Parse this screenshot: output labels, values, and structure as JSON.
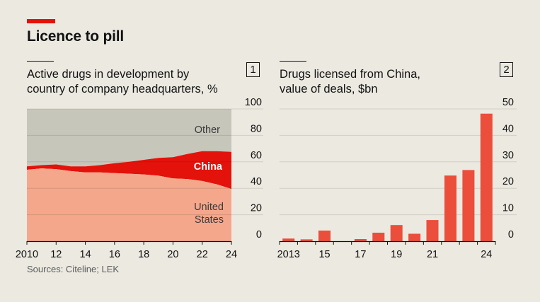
{
  "header": {
    "title": "Licence to pill"
  },
  "footer": {
    "source": "Sources: Citeline; LEK"
  },
  "colors": {
    "accent": "#e3120b",
    "background": "#ebe9e0",
    "area_other": "#c7c6bb",
    "area_china": "#e3120b",
    "area_us": "#f5a78c",
    "bars": "#eb4e3b"
  },
  "chart_data": [
    {
      "id": "1",
      "type": "area",
      "title": "Active drugs in development by country of company headquarters, %",
      "title_lines": [
        "Active drugs in development by",
        "country of company headquarters, %"
      ],
      "panel_number": "1",
      "ylim": [
        0,
        100
      ],
      "yticks": [
        0,
        20,
        40,
        60,
        80,
        100
      ],
      "xticks": [
        2010,
        2012,
        2014,
        2016,
        2018,
        2020,
        2022,
        2024
      ],
      "xtick_labels": [
        "2010",
        "12",
        "14",
        "16",
        "18",
        "20",
        "22",
        "24"
      ],
      "x": [
        2010,
        2011,
        2012,
        2013,
        2014,
        2015,
        2016,
        2017,
        2018,
        2019,
        2020,
        2021,
        2022,
        2023,
        2024
      ],
      "series": [
        {
          "name": "United States",
          "label_lines": [
            "United",
            "States"
          ],
          "values": [
            54,
            55,
            54.5,
            53,
            52,
            52,
            51.5,
            51,
            50.5,
            49.5,
            47.5,
            47,
            45.5,
            43,
            39.5
          ]
        },
        {
          "name": "China",
          "label_lines": [
            "China"
          ],
          "values": [
            2.5,
            2.5,
            3.5,
            3.5,
            4.5,
            5.5,
            7.5,
            9,
            11,
            13.5,
            16,
            19,
            22.5,
            25,
            28
          ]
        },
        {
          "name": "Other",
          "label_lines": [
            "Other"
          ],
          "values": [
            43.5,
            42.5,
            42,
            43.5,
            43.5,
            42.5,
            41,
            40,
            38.5,
            37,
            36.5,
            34,
            32,
            32,
            32.5
          ]
        }
      ]
    },
    {
      "id": "2",
      "type": "bar",
      "title": "Drugs licensed from China, value of deals, $bn",
      "title_lines": [
        "Drugs licensed from China,",
        "value of deals, $bn"
      ],
      "panel_number": "2",
      "ylim": [
        0,
        50
      ],
      "yticks": [
        0,
        10,
        20,
        30,
        40,
        50
      ],
      "categories": [
        "2013",
        "2014",
        "2015",
        "2016",
        "2017",
        "2018",
        "2019",
        "2020",
        "2021",
        "2022",
        "2023",
        "2024"
      ],
      "values": [
        1,
        0.7,
        4,
        0,
        0.8,
        3.2,
        6.1,
        2.8,
        8,
        24.8,
        26.9,
        48.2
      ],
      "xtick_labels": [
        "2013",
        "15",
        "17",
        "19",
        "21",
        "24"
      ],
      "xtick_categories": [
        "2013",
        "2015",
        "2017",
        "2019",
        "2021",
        "2024"
      ]
    }
  ]
}
